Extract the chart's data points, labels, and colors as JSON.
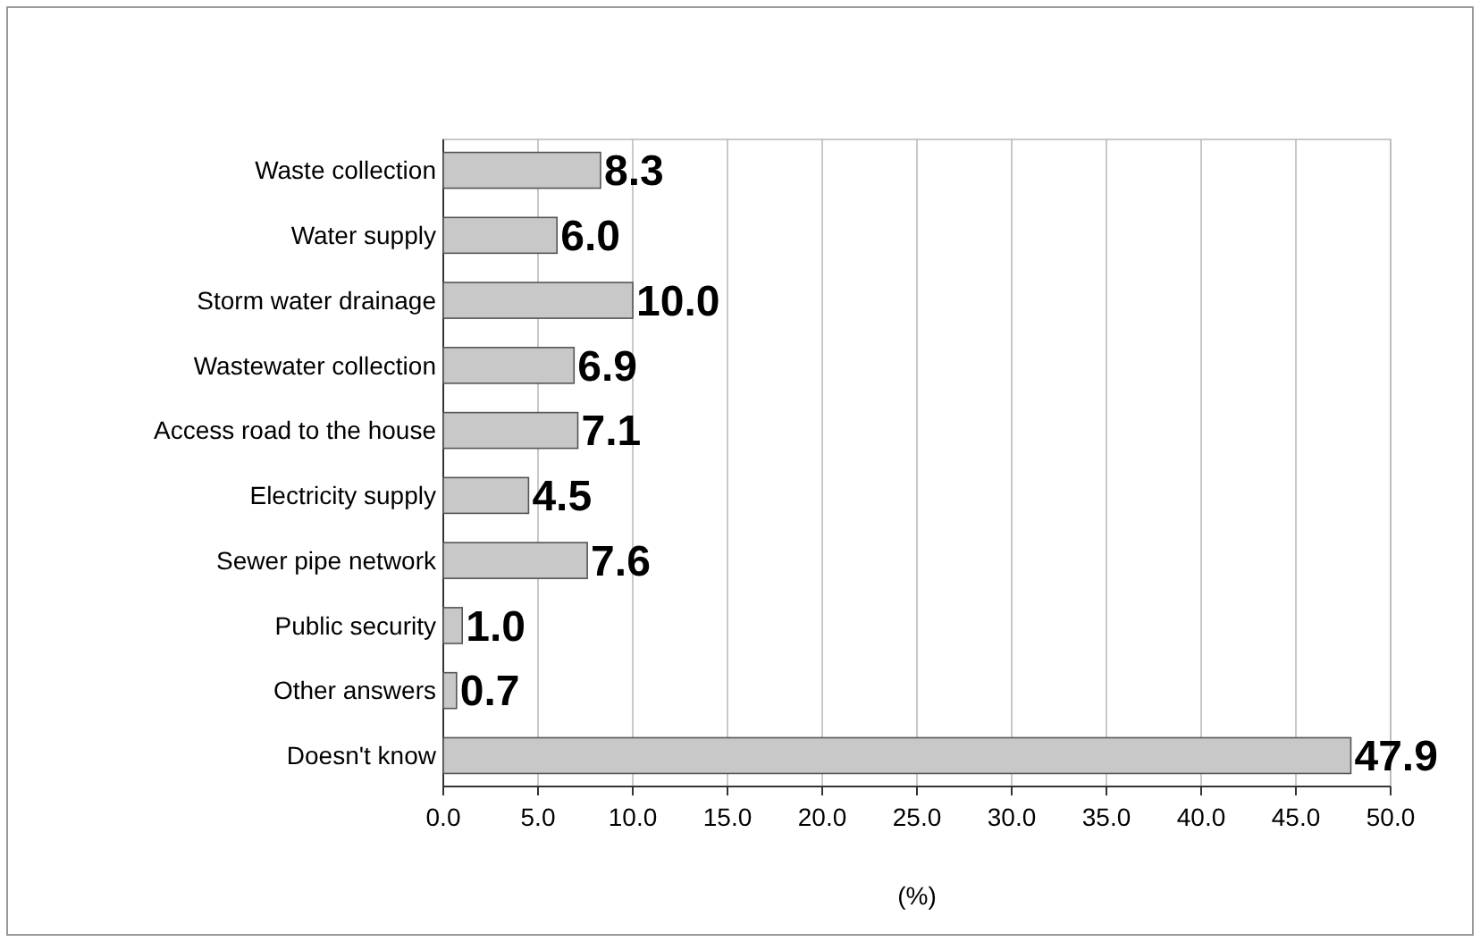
{
  "chart_data": {
    "type": "bar",
    "orientation": "horizontal",
    "xlabel": "(%)",
    "categories": [
      "Waste collection",
      "Water supply",
      "Storm water drainage",
      "Wastewater collection",
      "Access road to the house",
      "Electricity supply",
      "Sewer pipe network",
      "Public security",
      "Other answers",
      "Doesn't know"
    ],
    "values": [
      8.3,
      6.0,
      10.0,
      6.9,
      7.1,
      4.5,
      7.6,
      1.0,
      0.7,
      47.9
    ],
    "value_labels": [
      "8.3",
      "6.0",
      "10.0",
      "6.9",
      "7.1",
      "4.5",
      "7.6",
      "1.0",
      "0.7",
      "47.9"
    ],
    "color": "#c8c8c8",
    "xlim": [
      0,
      50
    ],
    "xticks": [
      {
        "value": 0,
        "label": "0.0"
      },
      {
        "value": 5,
        "label": "5.0"
      },
      {
        "value": 10,
        "label": "10.0"
      },
      {
        "value": 15,
        "label": "15.0"
      },
      {
        "value": 20,
        "label": "20.0"
      },
      {
        "value": 25,
        "label": "25.0"
      },
      {
        "value": 30,
        "label": "30.0"
      },
      {
        "value": 35,
        "label": "35.0"
      },
      {
        "value": 40,
        "label": "40.0"
      },
      {
        "value": 45,
        "label": "45.0"
      },
      {
        "value": 50,
        "label": "50.0"
      }
    ],
    "grid": "x"
  }
}
